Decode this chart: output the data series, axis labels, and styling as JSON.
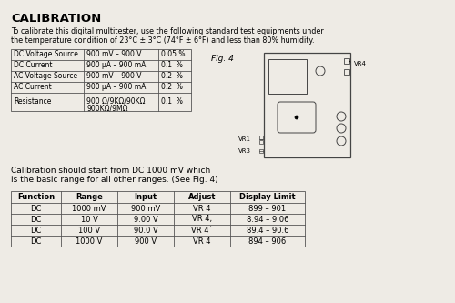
{
  "bg_color": "#eeebe5",
  "title": "CALIBRATION",
  "intro_line1": "To calibrate this digital multitester, use the following standard test equipments under",
  "intro_line2": "the temperature condition of 23°C ± 3°C (74°F ± 6°F) and less than 80% humidity.",
  "table1_rows": [
    [
      "DC Voltage Source",
      "900 mV – 900 V",
      "0.05 %"
    ],
    [
      "DC Current",
      "900 μA – 900 mA",
      "0.1  %"
    ],
    [
      "AC Voltage Source",
      "900 mV – 900 V",
      "0.2  %"
    ],
    [
      "AC Current",
      "900 μA – 900 mA",
      "0.2  %"
    ],
    [
      "Resistance",
      "900 Ω/9KΩ/90KΩ\n900KΩ/9MΩ",
      "0.1  %"
    ]
  ],
  "fig4_label": "Fig. 4",
  "caption_line1": "Calibration should start from DC 1000 mV which",
  "caption_line2": "is the basic range for all other ranges. (See Fig. 4)",
  "table2_headers": [
    "Function",
    "Range",
    "Input",
    "Adjust",
    "Display Limit"
  ],
  "table2_rows": [
    [
      "DC",
      "1000 mV",
      "900 mV",
      "VR 4",
      "899 – 901"
    ],
    [
      "DC",
      "10 V",
      "9.00 V",
      "VR 4,",
      "8.94 – 9.06"
    ],
    [
      "DC",
      "100 V",
      "90.0 V",
      "VR 4ˆ",
      "89.4 – 90.6"
    ],
    [
      "DC",
      "1000 V",
      "900 V",
      "VR 4",
      "894 – 906"
    ]
  ]
}
